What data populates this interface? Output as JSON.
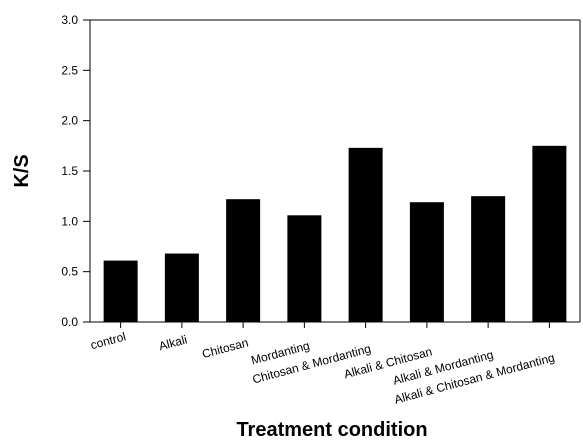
{
  "chart_data": {
    "type": "bar",
    "title": "",
    "xlabel": "Treatment condition",
    "ylabel": "K/S",
    "categories": [
      "control",
      "Alkali",
      "Chitosan",
      "Mordanting",
      "Chitosan & Mordanting",
      "Alkali & Chitosan",
      "Alkali & Mordanting",
      "Alkali & Chitosan & Mordanting"
    ],
    "values": [
      0.61,
      0.68,
      1.22,
      1.06,
      1.73,
      1.19,
      1.25,
      1.75
    ],
    "ylim": [
      0,
      3.0
    ],
    "yticks": [
      "0.0",
      "0.5",
      "1.0",
      "1.5",
      "2.0",
      "2.5",
      "3.0"
    ],
    "grid": false,
    "bar_color": "#000000",
    "axis_color": "#000000"
  }
}
